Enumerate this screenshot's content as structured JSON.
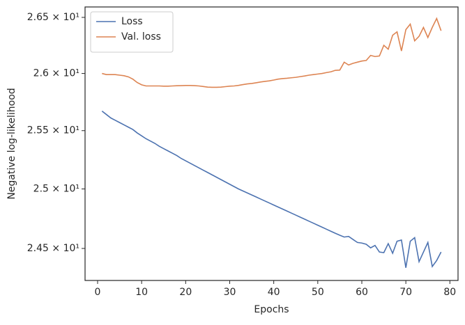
{
  "chart_data": {
    "type": "line",
    "xlabel": "Epochs",
    "ylabel": "Negative log-likelihood",
    "x": [
      1,
      2,
      3,
      4,
      5,
      6,
      7,
      8,
      9,
      10,
      11,
      12,
      13,
      14,
      15,
      16,
      17,
      18,
      19,
      20,
      21,
      22,
      23,
      24,
      25,
      26,
      27,
      28,
      29,
      30,
      31,
      32,
      33,
      34,
      35,
      36,
      37,
      38,
      39,
      40,
      41,
      42,
      43,
      44,
      45,
      46,
      47,
      48,
      49,
      50,
      51,
      52,
      53,
      54,
      55,
      56,
      57,
      58,
      59,
      60,
      61,
      62,
      63,
      64,
      65,
      66,
      67,
      68,
      69,
      70,
      71,
      72,
      73,
      74,
      75,
      76,
      77,
      78
    ],
    "series": [
      {
        "name": "Loss",
        "color": "#4c72b0",
        "values": [
          25.67,
          25.64,
          25.61,
          25.59,
          25.57,
          25.55,
          25.53,
          25.51,
          25.48,
          25.455,
          25.43,
          25.41,
          25.39,
          25.365,
          25.345,
          25.325,
          25.305,
          25.285,
          25.26,
          25.24,
          25.22,
          25.2,
          25.18,
          25.16,
          25.14,
          25.12,
          25.1,
          25.08,
          25.06,
          25.04,
          25.02,
          25.0,
          24.983,
          24.966,
          24.949,
          24.932,
          24.915,
          24.898,
          24.881,
          24.864,
          24.847,
          24.83,
          24.813,
          24.796,
          24.779,
          24.762,
          24.745,
          24.728,
          24.711,
          24.694,
          24.677,
          24.66,
          24.643,
          24.626,
          24.61,
          24.595,
          24.6,
          24.575,
          24.55,
          24.545,
          24.535,
          24.505,
          24.525,
          24.47,
          24.465,
          24.54,
          24.46,
          24.56,
          24.57,
          24.34,
          24.56,
          24.59,
          24.39,
          24.47,
          24.55,
          24.35,
          24.4,
          24.47
        ]
      },
      {
        "name": "Val. loss",
        "color": "#dd8452",
        "values": [
          26.0,
          25.99,
          25.99,
          25.99,
          25.985,
          25.98,
          25.97,
          25.95,
          25.92,
          25.9,
          25.89,
          25.89,
          25.89,
          25.89,
          25.888,
          25.888,
          25.89,
          25.892,
          25.893,
          25.894,
          25.894,
          25.893,
          25.89,
          25.885,
          25.88,
          25.878,
          25.878,
          25.88,
          25.884,
          25.888,
          25.89,
          25.895,
          25.902,
          25.908,
          25.912,
          25.918,
          25.925,
          25.93,
          25.935,
          25.942,
          25.95,
          25.955,
          25.958,
          25.962,
          25.966,
          25.972,
          25.978,
          25.985,
          25.99,
          25.995,
          26.0,
          26.008,
          26.015,
          26.028,
          26.03,
          26.1,
          26.075,
          26.09,
          26.1,
          26.11,
          26.115,
          26.16,
          26.15,
          26.155,
          26.25,
          26.215,
          26.34,
          26.37,
          26.2,
          26.39,
          26.44,
          26.29,
          26.33,
          26.41,
          26.32,
          26.41,
          26.49,
          26.38
        ]
      }
    ],
    "xlim": [
      -2.85,
      81.85
    ],
    "xticks": [
      0,
      10,
      20,
      30,
      40,
      50,
      60,
      70,
      80
    ],
    "ylim": [
      24.235,
      26.594
    ],
    "log_y": true,
    "yticks": [
      {
        "value": 24.5,
        "label": "2.45 × 10¹"
      },
      {
        "value": 25,
        "label": "2.5 × 10¹"
      },
      {
        "value": 25.5,
        "label": "2.55 × 10¹"
      },
      {
        "value": 26,
        "label": "2.6 × 10¹"
      },
      {
        "value": 26.5,
        "label": "2.65 × 10¹"
      }
    ],
    "legend": "upper left",
    "grid": false
  }
}
